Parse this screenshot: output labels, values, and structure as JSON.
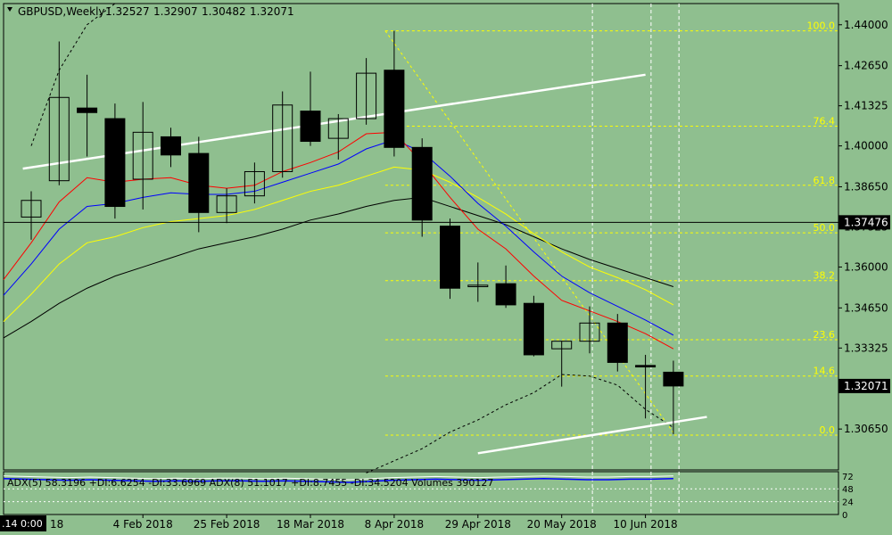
{
  "header": {
    "symbol": "GBPUSD,Weekly",
    "open": "1.32527",
    "high": "1.32907",
    "low": "1.30482",
    "close": "1.32071"
  },
  "current_price_label": "1.32071",
  "crosshair_price_label": "1.37476",
  "corner_label": ".14 0:00",
  "indicator": {
    "text": "ADX(5) 58.3196 +DI:6.6254 -DI:33.6969  ADX(8) 51.1017 +DI:8.7455 -DI:34.5204  Volumes 390127",
    "scale_labels": [
      "72",
      "48",
      "24",
      "0"
    ],
    "values": [
      72,
      71,
      70,
      69,
      70,
      69,
      68,
      67,
      68,
      67,
      68,
      68,
      67,
      68,
      67,
      66,
      65,
      67,
      69,
      70,
      71,
      70,
      69,
      70,
      71,
      72,
      71,
      70,
      70,
      71,
      71,
      72
    ]
  },
  "colors": {
    "background": "#8fbf8f",
    "bull_candle": "#ffffff",
    "bear_candle": "#000000",
    "ma_red": "#ff0000",
    "ma_blue": "#0000ff",
    "ma_yellow": "#ffff00",
    "ma_black": "#000000",
    "fib": "#ffff00",
    "trendline": "#ffffff"
  },
  "chart_data": {
    "type": "candlestick",
    "title": "GBPUSD,Weekly",
    "ylim": [
      1.293,
      1.447
    ],
    "y_ticks": [
      "1.44000",
      "1.42650",
      "1.41325",
      "1.40000",
      "1.38650",
      "1.37325",
      "1.36000",
      "1.34650",
      "1.33325",
      "1.32000",
      "1.30650"
    ],
    "x_labels": [
      {
        "label": "4 Feb 2018",
        "bar": 4
      },
      {
        "label": "25 Feb 2018",
        "bar": 7
      },
      {
        "label": "18 Mar 2018",
        "bar": 10
      },
      {
        "label": "8 Apr 2018",
        "bar": 13
      },
      {
        "label": "29 Apr 2018",
        "bar": 16
      },
      {
        "label": "20 May 2018",
        "bar": 19
      },
      {
        "label": "10 Jun 2018",
        "bar": 22
      }
    ],
    "x_label_partial": "18",
    "candles": [
      {
        "o": 1.3765,
        "h": 1.385,
        "l": 1.369,
        "c": 1.382
      },
      {
        "o": 1.3885,
        "h": 1.4345,
        "l": 1.387,
        "c": 1.416
      },
      {
        "o": 1.4125,
        "h": 1.4235,
        "l": 1.3965,
        "c": 1.411
      },
      {
        "o": 1.409,
        "h": 1.414,
        "l": 1.376,
        "c": 1.38
      },
      {
        "o": 1.389,
        "h": 1.4145,
        "l": 1.379,
        "c": 1.4045
      },
      {
        "o": 1.403,
        "h": 1.406,
        "l": 1.393,
        "c": 1.397
      },
      {
        "o": 1.3975,
        "h": 1.403,
        "l": 1.3715,
        "c": 1.378
      },
      {
        "o": 1.378,
        "h": 1.386,
        "l": 1.3745,
        "c": 1.3835
      },
      {
        "o": 1.3835,
        "h": 1.3945,
        "l": 1.381,
        "c": 1.3915
      },
      {
        "o": 1.3915,
        "h": 1.418,
        "l": 1.3895,
        "c": 1.4135
      },
      {
        "o": 1.4115,
        "h": 1.4245,
        "l": 1.4,
        "c": 1.4015
      },
      {
        "o": 1.4025,
        "h": 1.4105,
        "l": 1.3955,
        "c": 1.409
      },
      {
        "o": 1.409,
        "h": 1.429,
        "l": 1.407,
        "c": 1.424
      },
      {
        "o": 1.425,
        "h": 1.438,
        "l": 1.3965,
        "c": 1.3995
      },
      {
        "o": 1.3995,
        "h": 1.4025,
        "l": 1.37,
        "c": 1.3755
      },
      {
        "o": 1.3735,
        "h": 1.376,
        "l": 1.3495,
        "c": 1.353
      },
      {
        "o": 1.3535,
        "h": 1.3615,
        "l": 1.3485,
        "c": 1.354
      },
      {
        "o": 1.3545,
        "h": 1.3605,
        "l": 1.3465,
        "c": 1.3475
      },
      {
        "o": 1.348,
        "h": 1.3505,
        "l": 1.3305,
        "c": 1.331
      },
      {
        "o": 1.333,
        "h": 1.3355,
        "l": 1.3205,
        "c": 1.3355
      },
      {
        "o": 1.3355,
        "h": 1.347,
        "l": 1.3315,
        "c": 1.3415
      },
      {
        "o": 1.3415,
        "h": 1.3445,
        "l": 1.3255,
        "c": 1.3285
      },
      {
        "o": 1.3275,
        "h": 1.331,
        "l": 1.31,
        "c": 1.327
      },
      {
        "o": 1.32527,
        "h": 1.32907,
        "l": 1.30482,
        "c": 1.32071
      }
    ],
    "ma_red": [
      1.368,
      1.3815,
      1.3895,
      1.388,
      1.389,
      1.3895,
      1.387,
      1.386,
      1.387,
      1.3915,
      1.3945,
      1.398,
      1.404,
      1.4045,
      1.3945,
      1.383,
      1.3725,
      1.366,
      1.357,
      1.349,
      1.3455,
      1.342,
      1.338,
      1.333
    ],
    "ma_blue": [
      1.361,
      1.3725,
      1.38,
      1.381,
      1.383,
      1.3845,
      1.384,
      1.384,
      1.385,
      1.388,
      1.391,
      1.394,
      1.399,
      1.402,
      1.398,
      1.39,
      1.381,
      1.3735,
      1.365,
      1.357,
      1.3515,
      1.347,
      1.3425,
      1.3375
    ],
    "ma_yellow": [
      1.351,
      1.361,
      1.368,
      1.37,
      1.373,
      1.375,
      1.376,
      1.377,
      1.379,
      1.382,
      1.385,
      1.387,
      1.39,
      1.393,
      1.392,
      1.388,
      1.383,
      1.3775,
      1.371,
      1.365,
      1.36,
      1.3565,
      1.3525,
      1.3475
    ],
    "ma_black": [
      1.342,
      1.348,
      1.353,
      1.357,
      1.36,
      1.363,
      1.366,
      1.368,
      1.37,
      1.3725,
      1.3755,
      1.3775,
      1.38,
      1.382,
      1.383,
      1.38,
      1.377,
      1.374,
      1.37,
      1.366,
      1.3625,
      1.3595,
      1.3565,
      1.3535
    ],
    "envelope_upper": [
      1.4,
      1.425,
      1.44,
      1.447
    ],
    "envelope_lower": [
      1.292,
      1.296,
      1.3,
      1.3055,
      1.3095,
      1.3145,
      1.3185,
      1.3245,
      1.324,
      1.321,
      1.313,
      1.307
    ],
    "envelope_upper_bars": [
      0,
      1,
      2,
      3
    ],
    "envelope_lower_bars": [
      12,
      13,
      14,
      15,
      16,
      17,
      18,
      19,
      20,
      21,
      22,
      23
    ],
    "fibonacci": [
      {
        "level": "100.0",
        "price": 1.438
      },
      {
        "level": "76.4",
        "price": 1.4065
      },
      {
        "level": "61.8",
        "price": 1.387
      },
      {
        "level": "50.0",
        "price": 1.3713
      },
      {
        "level": "38.2",
        "price": 1.3555
      },
      {
        "level": "23.6",
        "price": 1.336
      },
      {
        "level": "14.6",
        "price": 1.324
      },
      {
        "level": "0.0",
        "price": 1.3045
      }
    ],
    "fib_start_bar": 13,
    "trendlines": [
      {
        "bar1": -0.3,
        "p1": 1.3925,
        "bar2": 22,
        "p2": 1.4235
      },
      {
        "bar1": 16,
        "p1": 1.2985,
        "bar2": 24.2,
        "p2": 1.3105
      }
    ],
    "crosshair_price": 1.37476,
    "vertical_markers_bars": [
      20.1,
      22.2,
      23.2
    ]
  }
}
